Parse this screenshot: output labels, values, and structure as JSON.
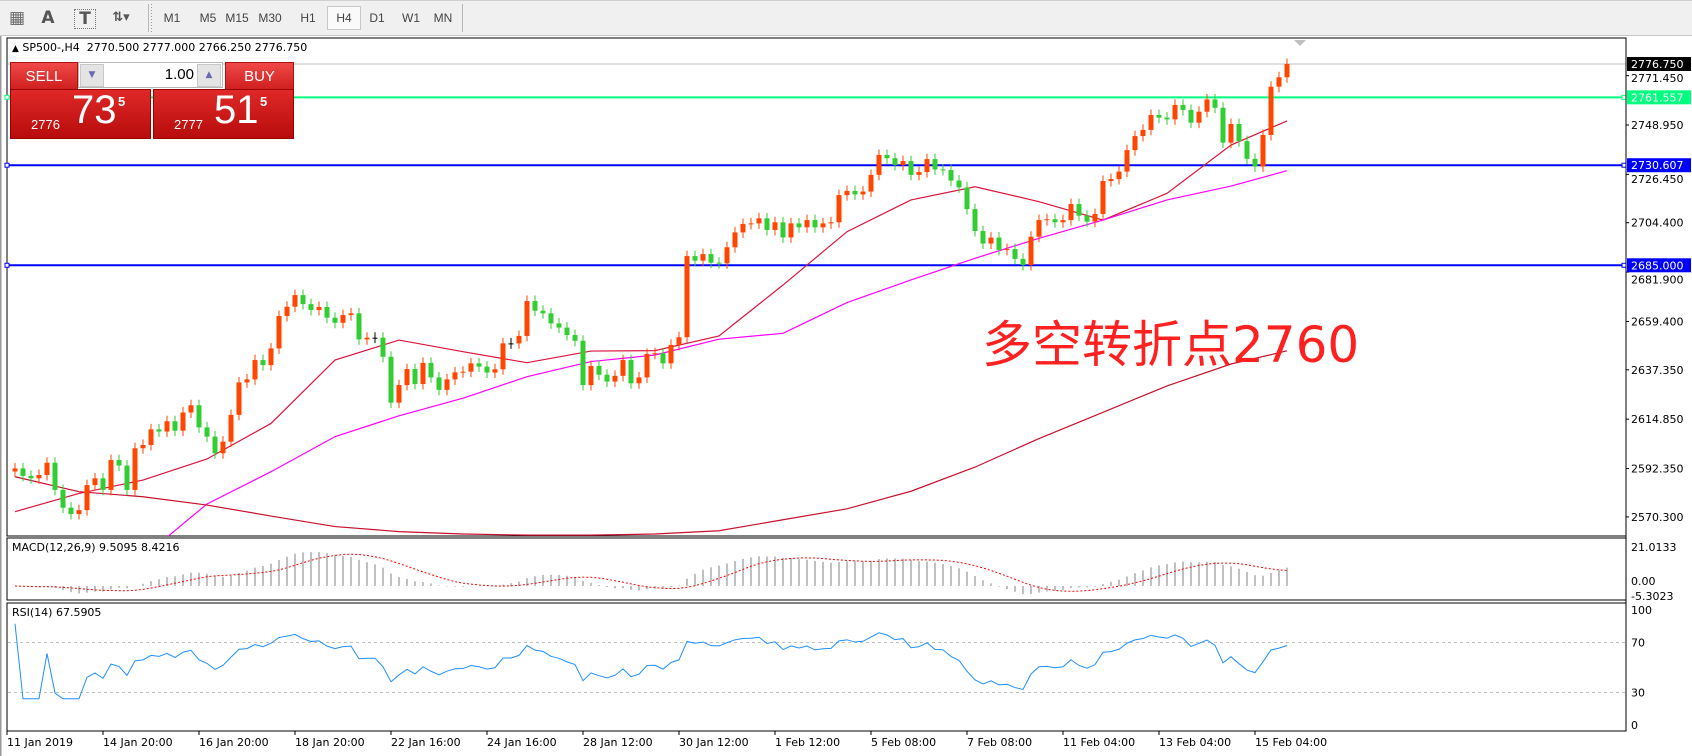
{
  "toolbar": {
    "icons": [
      {
        "name": "period-separator-grid-icon",
        "glyph": "▦"
      },
      {
        "name": "text-label-icon",
        "glyph": "A"
      },
      {
        "name": "text-box-icon",
        "glyph": "T"
      },
      {
        "name": "arrows-dropdown-icon",
        "glyph": "⇅▾"
      }
    ],
    "timeframes": [
      "M1",
      "M5",
      "M15",
      "M30",
      "H1",
      "H4",
      "D1",
      "W1",
      "MN"
    ],
    "selected_timeframe": "H4"
  },
  "chart_header": {
    "arrow": "▲",
    "symbol": "SP500-,H4",
    "open": "2770.500",
    "high": "2777.000",
    "low": "2766.250",
    "close": "2776.750"
  },
  "one_click": {
    "sell_label": "SELL",
    "buy_label": "BUY",
    "volume": "1.00",
    "sell_price": {
      "prefix": "2776",
      "big": "73",
      "sup": "5"
    },
    "buy_price": {
      "prefix": "2777",
      "big": "51",
      "sup": "5"
    }
  },
  "annotation": "多空转折点2760",
  "colors": {
    "bull": "#ff4500",
    "bear": "#32cd32",
    "doji": "#000000",
    "ma_fast": "#dc143c",
    "ma_mid": "#ff00ff",
    "ma_slow": "#c8102e",
    "hline_green": "#00ff7f",
    "hline_blue": "#0000ff",
    "macd_hist": "#c0c0c0",
    "macd_signal": "#ff0000",
    "rsi": "#1e90ff",
    "annotation": "#ff2020"
  },
  "chart_data": [
    {
      "type": "candlestick",
      "title": "SP500-,H4",
      "ylim": [
        2561.6,
        2788.6
      ],
      "y_ticks": [
        "2771.450",
        "2748.950",
        "2726.450",
        "2704.400",
        "2681.900",
        "2659.400",
        "2637.350",
        "2614.850",
        "2592.350",
        "2570.300"
      ],
      "x_tick_labels": [
        "11 Jan 2019",
        "14 Jan 20:00",
        "16 Jan 20:00",
        "18 Jan 20:00",
        "22 Jan 16:00",
        "24 Jan 16:00",
        "28 Jan 12:00",
        "30 Jan 12:00",
        "1 Feb 12:00",
        "5 Feb 08:00",
        "7 Feb 08:00",
        "11 Feb 04:00",
        "13 Feb 04:00",
        "15 Feb 04:00"
      ],
      "first_open": 2591.0,
      "closes": [
        2592.4,
        2589,
        2587.9,
        2589.4,
        2595,
        2582.6,
        2574.5,
        2571.6,
        2573.4,
        2584.8,
        2587.9,
        2582.6,
        2596.2,
        2593.7,
        2582.6,
        2601.6,
        2603.1,
        2610.2,
        2609.2,
        2613.9,
        2609.6,
        2617.9,
        2621.2,
        2611.1,
        2606.9,
        2599.3,
        2604.6,
        2616.8,
        2631.6,
        2633,
        2641.8,
        2639.5,
        2647.1,
        2661.9,
        2666.1,
        2671.4,
        2667.3,
        2664.6,
        2666,
        2661.1,
        2658.8,
        2662.3,
        2663.1,
        2651.2,
        2652,
        2652,
        2643.3,
        2622.4,
        2630.4,
        2637.7,
        2630.9,
        2640.5,
        2633.9,
        2628.2,
        2633,
        2636.2,
        2636.5,
        2640.3,
        2638.8,
        2636.1,
        2637.6,
        2649.4,
        2649.4,
        2652.8,
        2668.7,
        2664.3,
        2663.1,
        2658.5,
        2656.6,
        2653.2,
        2650.6,
        2630.4,
        2639.1,
        2635.1,
        2632,
        2634.6,
        2641.8,
        2631.2,
        2633.9,
        2644.6,
        2644.9,
        2640.3,
        2648.7,
        2652.2,
        2689.2,
        2687.1,
        2690.1,
        2686.2,
        2685.9,
        2693.2,
        2700,
        2703.8,
        2704.1,
        2706.4,
        2701.1,
        2704.6,
        2697.7,
        2704.1,
        2702.3,
        2705.6,
        2702.3,
        2704.1,
        2704.6,
        2717,
        2718.9,
        2717.3,
        2718.6,
        2726.2,
        2735.3,
        2733.8,
        2730.7,
        2732.5,
        2726.2,
        2727.5,
        2733.4,
        2728.7,
        2728.4,
        2723.6,
        2720.5,
        2710.6,
        2700.6,
        2694.9,
        2697.6,
        2692,
        2692.4,
        2687.9,
        2685.1,
        2698,
        2705.6,
        2706,
        2704.6,
        2705.6,
        2712.9,
        2707.6,
        2704.9,
        2708.4,
        2723.4,
        2724.3,
        2727.7,
        2737.5,
        2743.9,
        2746.7,
        2753.5,
        2752.3,
        2751.5,
        2758.1,
        2755.8,
        2750,
        2755,
        2760.6,
        2756.8,
        2740.9,
        2749.4,
        2741.6,
        2733.5,
        2730,
        2744.4,
        2766.4,
        2770.7,
        2776.75
      ],
      "moving_averages": [
        {
          "color": "#dc143c",
          "values": [
            2572.7,
            2581,
            2587.1,
            2596.7,
            2612.9,
            2641.8,
            2650.9,
            2645.6,
            2640.6,
            2645.9,
            2646.1,
            2652.8,
            2676,
            2700.3,
            2714.8,
            2720.8,
            2714,
            2705.6,
            2717.8,
            2739.8,
            2750.8
          ]
        },
        {
          "color": "#ff00ff",
          "values": [
            null,
            null,
            2552,
            2576.2,
            2590.9,
            2606.9,
            2616.4,
            2624.4,
            2634.2,
            2641.1,
            2644.1,
            2651.3,
            2654,
            2668,
            2678.3,
            2688.2,
            2697.3,
            2705.6,
            2714.8,
            2721.1,
            2728.1
          ]
        },
        {
          "color": "#c8102e",
          "values": [
            2588.6,
            2581.8,
            2579.5,
            2575.7,
            2570.7,
            2565.9,
            2563.6,
            2562.5,
            2562,
            2562,
            2562.5,
            2564,
            2569,
            2574,
            2582,
            2593,
            2606,
            2618,
            2630,
            2640,
            2646
          ]
        }
      ],
      "horizontal_lines": [
        {
          "price": 2761.557,
          "label": "2761.557",
          "color": "#00ff7f"
        },
        {
          "price": 2730.607,
          "label": "2730.607",
          "color": "#0000ff"
        },
        {
          "price": 2685.0,
          "label": "2685.000",
          "color": "#0000ff"
        }
      ],
      "current_price": {
        "price": 2776.75,
        "label": "2776.750"
      }
    },
    {
      "type": "macd",
      "label": "MACD(12,26,9) 9.5095 8.4216",
      "params": [
        12,
        26,
        9
      ],
      "y_ticks": [
        "21.0133",
        "0.00",
        "-5.3023"
      ],
      "ylim": [
        -5.3023,
        21.0133
      ]
    },
    {
      "type": "rsi",
      "label": "RSI(14) 67.5905",
      "period": 14,
      "levels": [
        70,
        30
      ],
      "y_ticks": [
        "100",
        "70",
        "30",
        "0"
      ],
      "ylim": [
        0,
        100
      ]
    }
  ]
}
